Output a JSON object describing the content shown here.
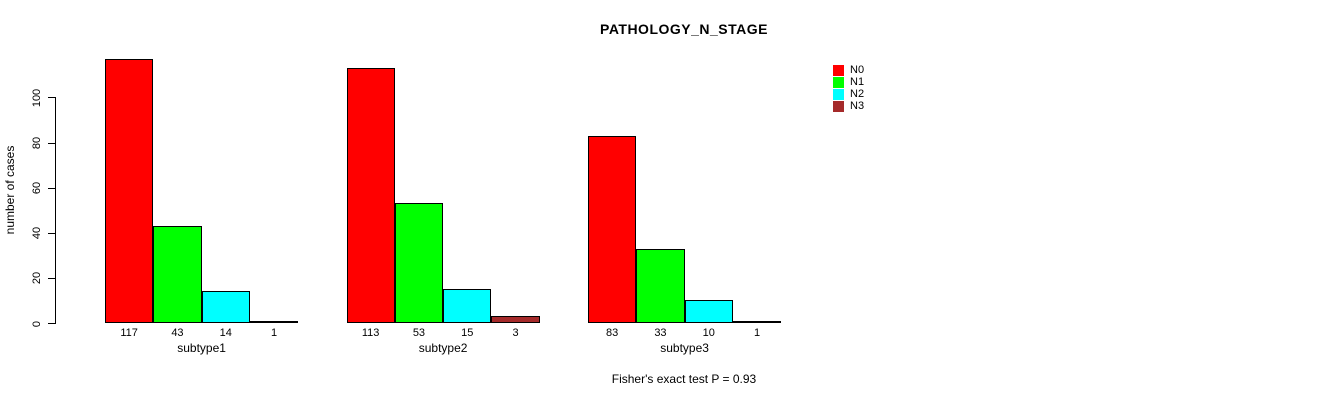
{
  "chart_data": {
    "type": "bar",
    "title": "PATHOLOGY_N_STAGE",
    "categories": [
      "subtype1",
      "subtype2",
      "subtype3"
    ],
    "series": [
      {
        "name": "N0",
        "color": "#ff0000",
        "values": [
          117,
          113,
          83
        ]
      },
      {
        "name": "N1",
        "color": "#00ff00",
        "values": [
          43,
          53,
          33
        ]
      },
      {
        "name": "N2",
        "color": "#00ffff",
        "values": [
          14,
          15,
          10
        ]
      },
      {
        "name": "N3",
        "color": "#a52a2a",
        "values": [
          1,
          3,
          1
        ]
      }
    ],
    "ylabel": "number of cases",
    "ylim": [
      0,
      117
    ],
    "yticks": [
      0,
      20,
      40,
      60,
      80,
      100
    ],
    "grid": false,
    "bar_labels": true,
    "legend_position": "right",
    "annotation": "Fisher's exact test P = 0.93"
  }
}
